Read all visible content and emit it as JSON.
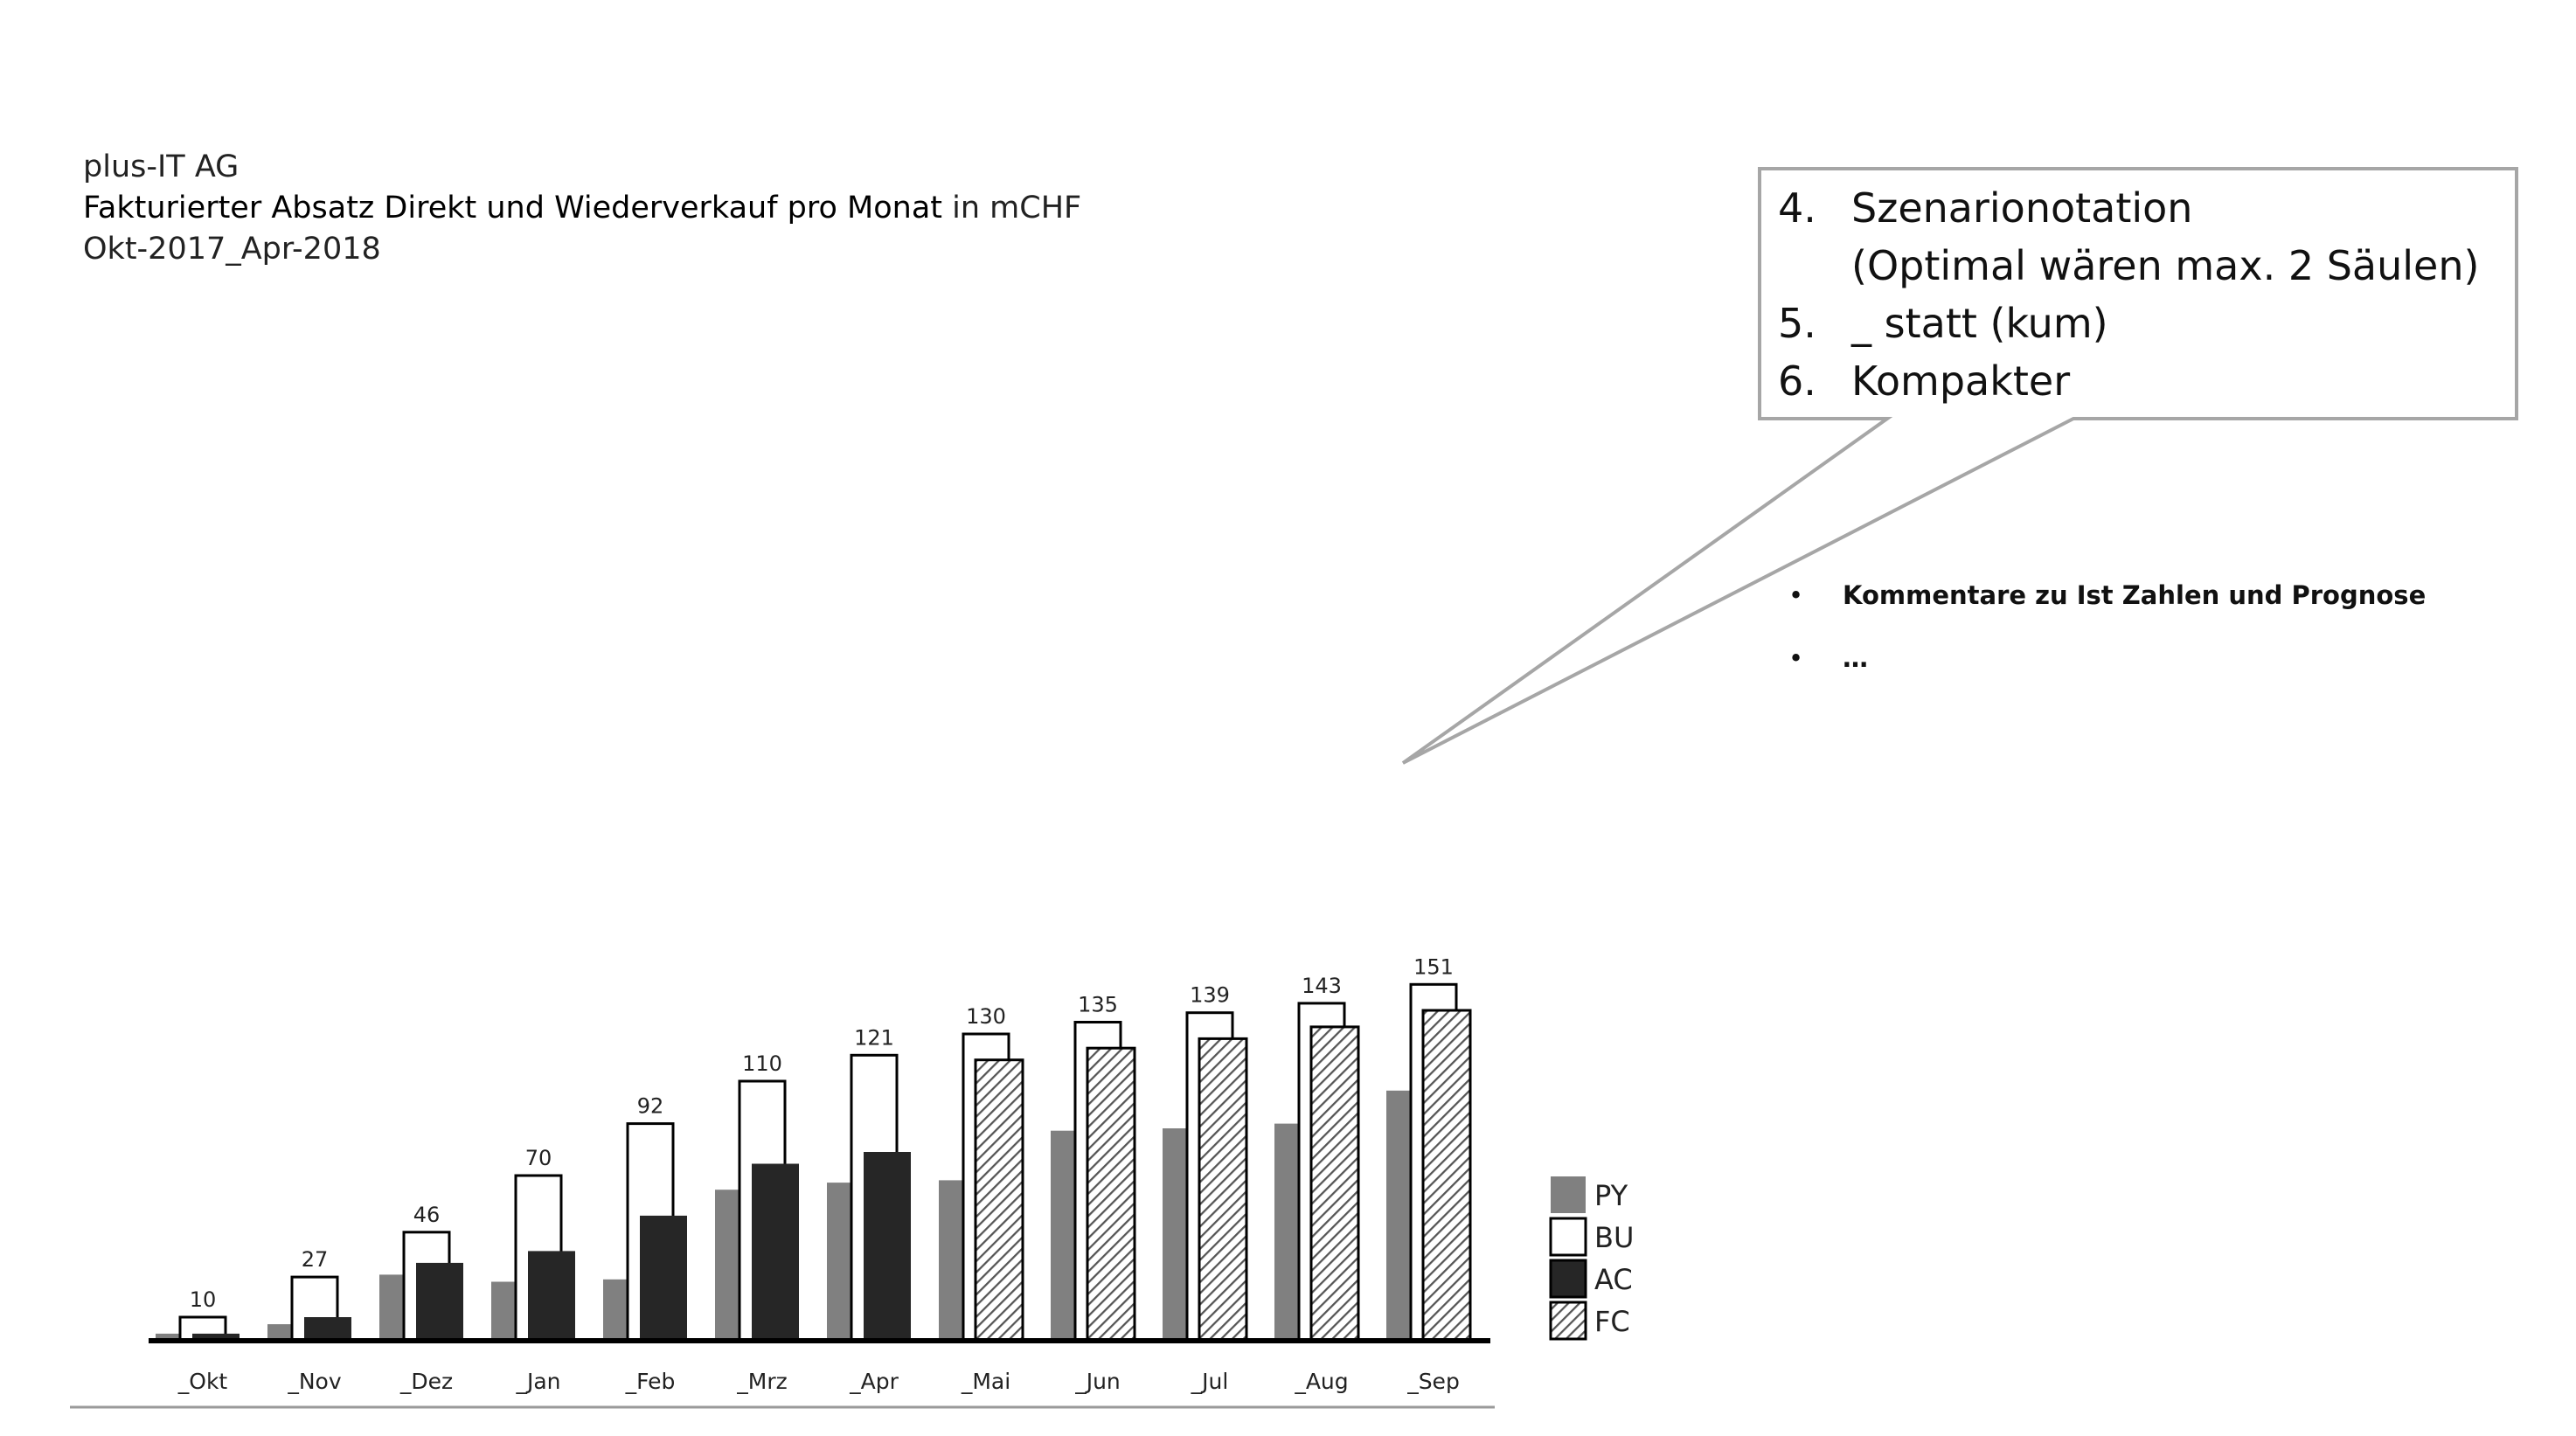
{
  "header": {
    "company": "plus-IT AG",
    "title_bold": "Fakturierter Absatz Direkt und Wiederverkauf pro Monat",
    "title_unit": " in mCHF",
    "period": "Okt-2017_Apr-2018"
  },
  "callout": {
    "items": [
      {
        "num": "4.",
        "text": "Szenarionotation"
      },
      {
        "num": "",
        "text": "(Optimal wären max. 2 Säulen)"
      },
      {
        "num": "5.",
        "text": "_ statt (kum)"
      },
      {
        "num": "6.",
        "text": "Kompakter"
      }
    ]
  },
  "comments": {
    "bullet": "•",
    "items": [
      "Kommentare zu Ist Zahlen und Prognose",
      "…"
    ]
  },
  "colors": {
    "py": "#808080",
    "bu": "#ffffff",
    "ac": "#262626",
    "fc_hatch": "#555555",
    "axis": "#000000"
  },
  "chart_data": {
    "type": "bar",
    "categories": [
      "_Okt",
      "_Nov",
      "_Dez",
      "_Jan",
      "_Feb",
      "_Mrz",
      "_Apr",
      "_Mai",
      "_Jun",
      "_Jul",
      "_Aug",
      "_Sep"
    ],
    "series": [
      {
        "name": "PY",
        "values": [
          3,
          7,
          28,
          25,
          26,
          64,
          67,
          68,
          89,
          90,
          92,
          106
        ]
      },
      {
        "name": "BU",
        "values": [
          10,
          27,
          46,
          70,
          92,
          110,
          121,
          130,
          135,
          139,
          143,
          151
        ]
      },
      {
        "name": "AC",
        "values": [
          3,
          10,
          33,
          38,
          53,
          75,
          80,
          null,
          null,
          null,
          null,
          null
        ]
      },
      {
        "name": "FC",
        "values": [
          null,
          null,
          null,
          null,
          null,
          null,
          null,
          119,
          124,
          128,
          133,
          140
        ]
      }
    ],
    "data_labels": [
      "10",
      "27",
      "46",
      "70",
      "92",
      "110",
      "121",
      "130",
      "135",
      "139",
      "143",
      "151"
    ],
    "legend": [
      "PY",
      "BU",
      "AC",
      "FC"
    ],
    "legend_position": "right",
    "ylim": [
      0,
      160
    ],
    "grid": false
  }
}
